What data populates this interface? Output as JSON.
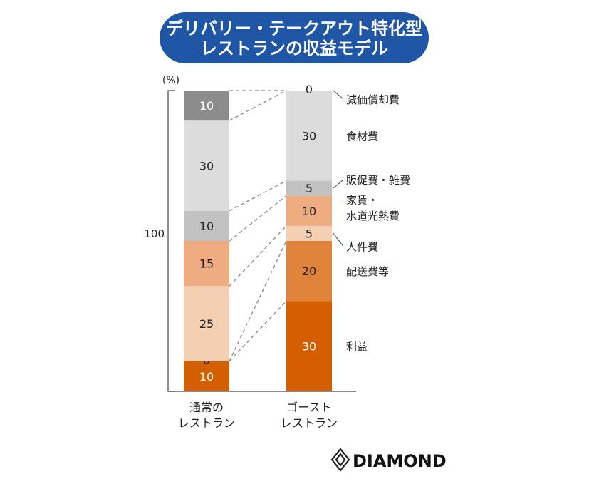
{
  "title": {
    "line1": "デリバリー・テークアウト特化型",
    "line2": "レストランの収益モデル"
  },
  "chart_data": {
    "type": "bar",
    "stacked": true,
    "unit_label": "(%)",
    "y_total_label": "100",
    "ylim": [
      0,
      100
    ],
    "categories": [
      "通常の\nレストラン",
      "ゴースト\nレストラン"
    ],
    "series": [
      {
        "name": "利益",
        "values": [
          10,
          30
        ],
        "color": "#d45f00",
        "text_color": "#ffffff"
      },
      {
        "name": "配送費等",
        "values": [
          0,
          20
        ],
        "color": "#e0833a",
        "text_color": "#222222"
      },
      {
        "name": "人件費",
        "values": [
          25,
          5
        ],
        "color": "#f4cfb2",
        "text_color": "#222222"
      },
      {
        "name": "家賃・\n水道光熱費",
        "values": [
          15,
          10
        ],
        "color": "#eeab80",
        "text_color": "#222222"
      },
      {
        "name": "販促費・雑費",
        "values": [
          10,
          5
        ],
        "color": "#c2c2c2",
        "text_color": "#222222"
      },
      {
        "name": "食材費",
        "values": [
          30,
          30
        ],
        "color": "#dcdcdc",
        "text_color": "#222222"
      },
      {
        "name": "減価償却費",
        "values": [
          10,
          0
        ],
        "color": "#8c8c8c",
        "text_color": "#ffffff"
      }
    ]
  },
  "logo": {
    "text": "DIAMOND"
  }
}
